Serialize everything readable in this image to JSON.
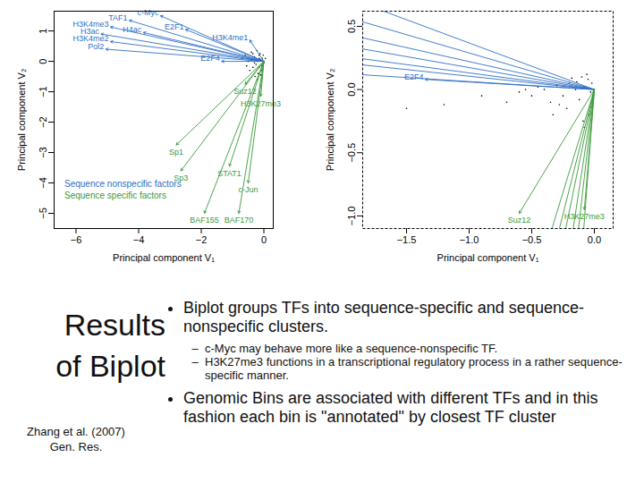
{
  "chart_data": [
    {
      "type": "biplot",
      "x_label": "Principal component V₁",
      "y_label": "Principal component V₂",
      "xlim": [
        -6.7,
        0.3
      ],
      "xticks": [
        {
          "value": -6,
          "label": "−6"
        },
        {
          "value": -4,
          "label": "−4"
        },
        {
          "value": -2,
          "label": "−2"
        },
        0
      ],
      "ylim": [
        -5.5,
        1.65
      ],
      "yticks": [
        {
          "value": -5,
          "label": "−5"
        },
        {
          "value": -4,
          "label": "−4"
        },
        {
          "value": -3,
          "label": "−3"
        },
        {
          "value": -2,
          "label": "−2"
        },
        {
          "value": -1,
          "label": "−1"
        },
        0,
        1
      ],
      "legend": "bottom-left",
      "origin": {
        "x": 0,
        "y": 0
      },
      "series": [
        {
          "name": "Sequence nonspecific factors",
          "color": "#2f6fc6",
          "arrows": [
            {
              "label": "H3K4me3",
              "x": -4.9,
              "y": 1.13
            },
            {
              "label": "TAF1",
              "x": -4.3,
              "y": 1.35
            },
            {
              "label": "c-Myc",
              "x": -3.3,
              "y": 1.5
            },
            {
              "label": "H4ac",
              "x": -3.85,
              "y": 0.95
            },
            {
              "label": "E2F1",
              "x": -2.5,
              "y": 1.05
            },
            {
              "label": "H3ac",
              "x": -5.2,
              "y": 0.9
            },
            {
              "label": "H3K4me2",
              "x": -4.9,
              "y": 0.65
            },
            {
              "label": "Pol2",
              "x": -5.05,
              "y": 0.4
            },
            {
              "label": "H3K4me1",
              "x": -0.45,
              "y": 0.7
            },
            {
              "label": "E2F4",
              "x": -1.35,
              "y": 0.0
            }
          ]
        },
        {
          "name": "Sequence specific factors",
          "color": "#3a9a3a",
          "arrows": [
            {
              "label": "Suz12",
              "x": -0.6,
              "y": -0.75
            },
            {
              "label": "H3K27me3",
              "x": -0.1,
              "y": -1.15
            },
            {
              "label": "Sp1",
              "x": -2.8,
              "y": -2.75
            },
            {
              "label": "Sp3",
              "x": -2.65,
              "y": -3.6
            },
            {
              "label": "STAT1",
              "x": -1.1,
              "y": -3.45
            },
            {
              "label": "c-Jun",
              "x": -0.5,
              "y": -4.0
            },
            {
              "label": "BAF155",
              "x": -1.9,
              "y": -5.0
            },
            {
              "label": "BAF170",
              "x": -0.8,
              "y": -5.0
            }
          ]
        }
      ],
      "points": {
        "color": "#000000",
        "x": [
          -0.05,
          -0.1,
          -0.15,
          -0.2,
          -0.25,
          -0.3,
          -0.35,
          -0.4,
          0.0,
          0.05,
          -0.08,
          -0.12,
          -0.18,
          -0.22,
          -0.28,
          -0.5,
          -0.6,
          -0.45,
          -0.02,
          -0.06,
          -0.14,
          -0.3,
          -0.4,
          -0.7,
          -0.2,
          -0.1,
          -0.35,
          -0.55,
          -0.25,
          -0.15
        ],
        "y": [
          0.1,
          0.05,
          0.2,
          0.0,
          -0.1,
          0.15,
          -0.2,
          0.3,
          -0.05,
          0.1,
          -0.3,
          0.25,
          -0.4,
          0.35,
          -0.5,
          0.0,
          0.2,
          -0.3,
          0.2,
          -0.15,
          0.1,
          -0.05,
          0.05,
          0.1,
          -0.6,
          -0.45,
          0.25,
          -0.15,
          0.05,
          -0.2
        ]
      }
    },
    {
      "type": "biplot",
      "x_label": "Principal component V₁",
      "y_label": "Principal component V₂",
      "xlim": [
        -1.85,
        0.15
      ],
      "xticks": [
        {
          "value": -1.5,
          "label": "−1.5"
        },
        {
          "value": -1.0,
          "label": "−1.0"
        },
        {
          "value": -0.5,
          "label": "−0.5"
        },
        {
          "value": 0,
          "label": "0.0"
        }
      ],
      "ylim": [
        -1.1,
        0.62
      ],
      "yticks": [
        {
          "value": -1.0,
          "label": "−1.0"
        },
        {
          "value": -0.5,
          "label": "−0.5"
        },
        {
          "value": 0,
          "label": "0.0"
        },
        0.5
      ],
      "line_style": "dashed",
      "origin": {
        "x": 0,
        "y": 0
      },
      "series": [
        {
          "color": "#2f6fc6",
          "arrows": [
            {
              "label": null,
              "x": -1.9,
              "y": 0.7
            },
            {
              "label": null,
              "x": -1.9,
              "y": 0.55
            },
            {
              "label": null,
              "x": -1.9,
              "y": 0.42
            },
            {
              "label": null,
              "x": -1.9,
              "y": 0.33
            },
            {
              "label": null,
              "x": -1.9,
              "y": 0.25
            },
            {
              "label": null,
              "x": -1.9,
              "y": 0.2
            },
            {
              "label": null,
              "x": -1.9,
              "y": 0.12
            },
            {
              "label": "E2F4",
              "x": -1.35,
              "y": 0.08
            }
          ]
        },
        {
          "color": "#3a9a3a",
          "arrows": [
            {
              "label": null,
              "x": -0.4,
              "y": -1.3
            },
            {
              "label": null,
              "x": -0.33,
              "y": -1.3
            },
            {
              "label": null,
              "x": -0.27,
              "y": -1.3
            },
            {
              "label": null,
              "x": -0.2,
              "y": -1.3
            },
            {
              "label": null,
              "x": -0.15,
              "y": -1.3
            },
            {
              "label": null,
              "x": -0.1,
              "y": -1.3
            },
            {
              "label": "Suz12",
              "x": -0.6,
              "y": -0.98
            },
            {
              "label": "H3K27me3",
              "x": -0.08,
              "y": -0.95
            }
          ]
        }
      ],
      "points": {
        "color": "#000000",
        "x": [
          -0.02,
          -0.05,
          -0.08,
          -0.1,
          -0.15,
          -0.2,
          -0.25,
          -0.3,
          -0.35,
          -0.4,
          -0.5,
          -0.6,
          -0.03,
          -0.06,
          -0.12,
          -0.18,
          -0.22,
          -0.28,
          -0.45,
          -0.7,
          -0.9,
          -1.2,
          -1.5,
          -0.01,
          -0.04,
          -0.09,
          -0.14,
          -0.33,
          -0.55,
          -0.08
        ],
        "y": [
          0.05,
          0.08,
          0.02,
          0.1,
          0.0,
          0.05,
          -0.05,
          0.03,
          -0.1,
          0.0,
          -0.05,
          -0.02,
          -0.02,
          0.12,
          -0.08,
          0.09,
          -0.15,
          -0.12,
          0.02,
          -0.1,
          -0.05,
          -0.12,
          -0.15,
          -0.05,
          -0.2,
          -0.25,
          0.06,
          -0.2,
          0.0,
          -0.3
        ]
      }
    }
  ],
  "slide": {
    "title": [
      "Results",
      "of Biplot"
    ],
    "citation": [
      "Zhang et al. (2007)",
      "Gen. Res."
    ],
    "bullets": [
      {
        "text": "Biplot groups TFs into sequence-specific and sequence-nonspecific clusters.",
        "sub": [
          "c-Myc may behave more like a sequence-nonspecific TF.",
          "H3K27me3 functions in a transcriptional regulatory process in a rather sequence-specific manner."
        ]
      },
      {
        "text": "Genomic Bins are associated with different TFs and in this fashion each bin is \"annotated\" by closest TF cluster"
      }
    ]
  }
}
